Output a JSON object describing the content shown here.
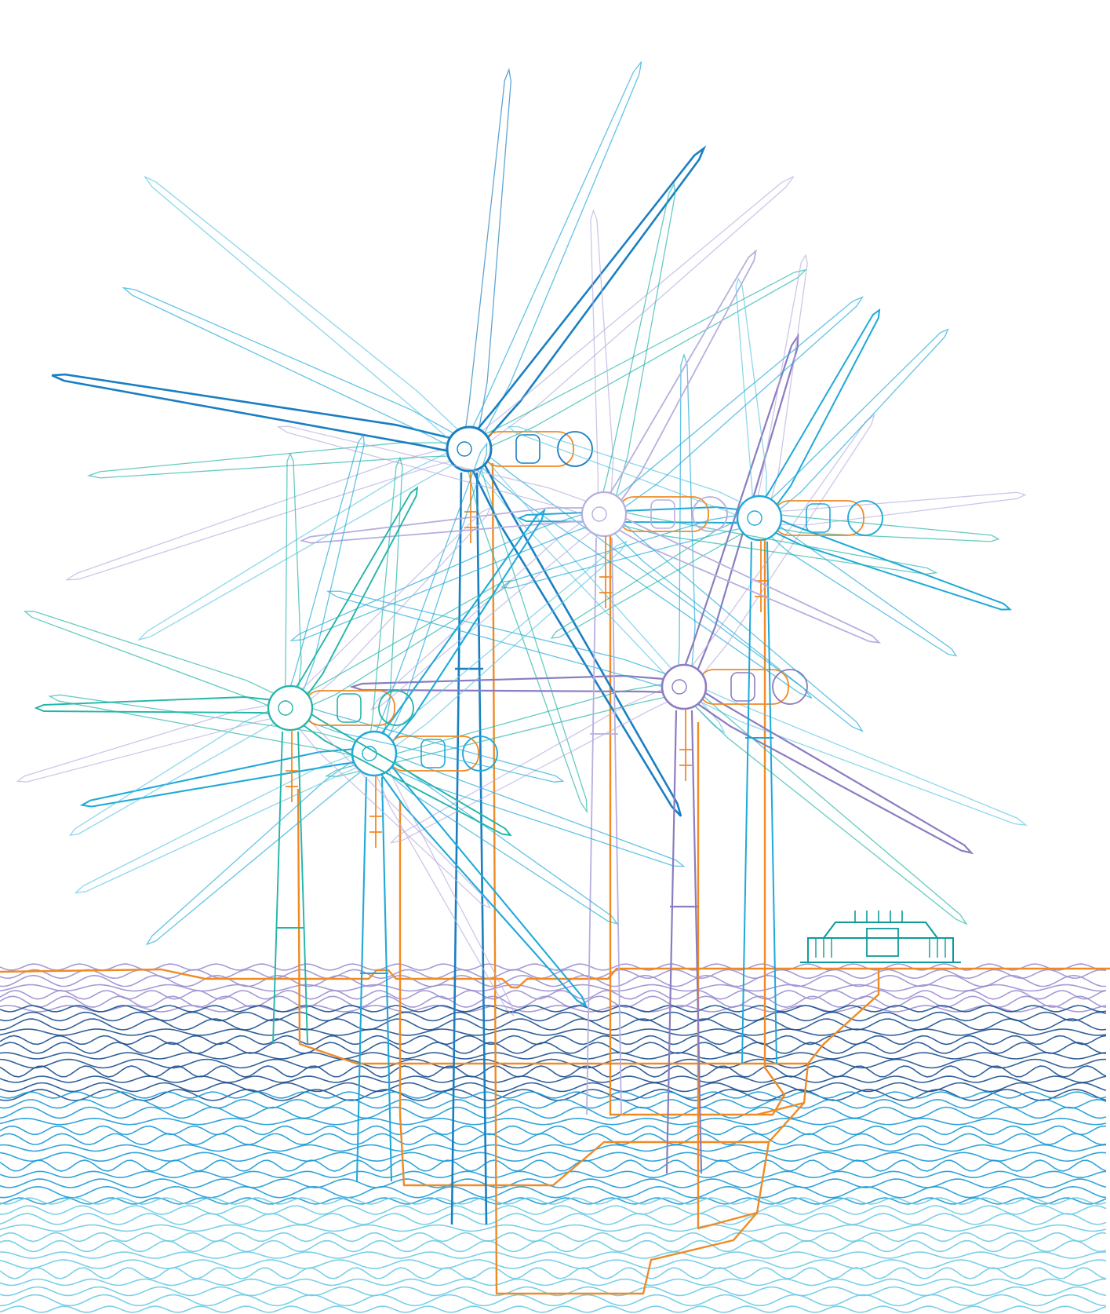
{
  "scene": {
    "subject": "offshore-wind-farm-line-illustration",
    "background_color": "#ffffff",
    "colors": {
      "blade_dark_blue": "#1a7fc2",
      "blade_cyan": "#1fa9d8",
      "blade_light_cyan": "#5cc6e3",
      "blade_teal": "#23b5a8",
      "blade_purple": "#8c7cc0",
      "blade_light_purple": "#b8aee0",
      "cable_orange": "#f08a24",
      "wave_purple": "#9b8fd0",
      "wave_navy": "#1b4f8f",
      "wave_blue": "#1a9ad6",
      "wave_light": "#6ccbe6",
      "substation_teal": "#0f9a9a"
    },
    "turbines": [
      {
        "name": "turbine-front-center",
        "color_key": "blade_dark_blue"
      },
      {
        "name": "turbine-right",
        "color_key": "blade_purple"
      },
      {
        "name": "turbine-far-right",
        "color_key": "blade_cyan"
      },
      {
        "name": "turbine-mid-back",
        "color_key": "blade_light_purple"
      },
      {
        "name": "turbine-left-center",
        "color_key": "blade_cyan"
      },
      {
        "name": "turbine-far-left",
        "color_key": "blade_teal"
      }
    ],
    "substation": {
      "name": "offshore-substation",
      "color_key": "substation_teal"
    },
    "wave_bands": [
      "wave_purple",
      "wave_navy",
      "wave_blue",
      "wave_light"
    ]
  }
}
